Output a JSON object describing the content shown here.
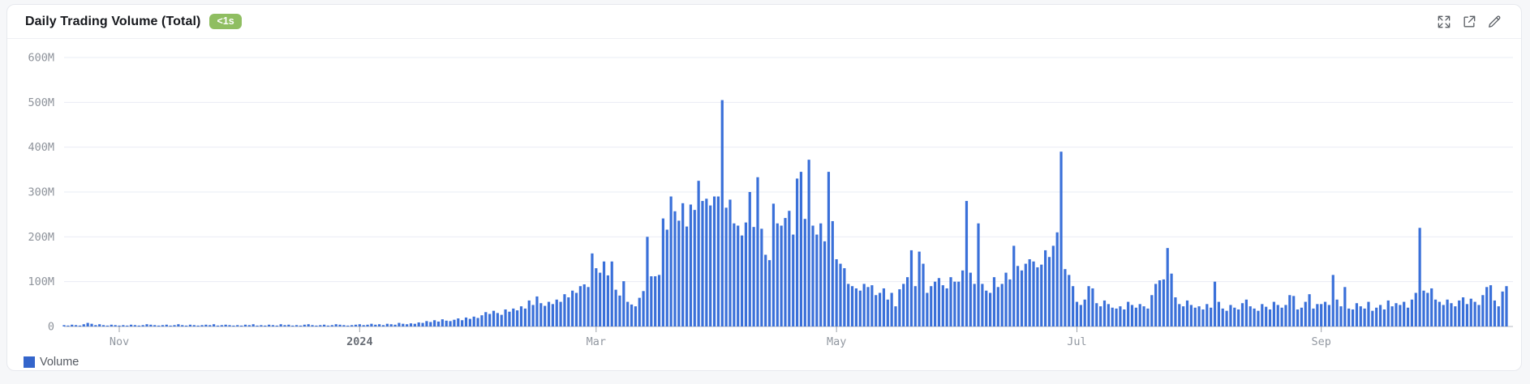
{
  "header": {
    "title": "Daily Trading Volume (Total)",
    "badge": "<1s",
    "badge_color": "#8fbe61",
    "icons": [
      {
        "name": "expand-icon"
      },
      {
        "name": "open-in-new-icon"
      },
      {
        "name": "edit-pencil-icon"
      }
    ]
  },
  "legend": {
    "label": "Volume",
    "color": "#3465cb"
  },
  "chart_data": {
    "type": "bar",
    "title": "Daily Trading Volume (Total)",
    "series_name": "Volume",
    "unit": "millions",
    "frequency": "daily",
    "start_date": "2023-10-18",
    "end_date": "2024-10-18",
    "ylim": [
      0,
      600000000
    ],
    "y_ticks": [
      {
        "value": 0,
        "label": "0"
      },
      {
        "value": 100,
        "label": "100M"
      },
      {
        "value": 200,
        "label": "200M"
      },
      {
        "value": 300,
        "label": "300M"
      },
      {
        "value": 400,
        "label": "400M"
      },
      {
        "value": 500,
        "label": "500M"
      },
      {
        "value": 600,
        "label": "600M"
      }
    ],
    "x_ticks": [
      {
        "label": "Nov",
        "day_index": 14,
        "bold": false
      },
      {
        "label": "2024",
        "day_index": 75,
        "bold": true
      },
      {
        "label": "Mar",
        "day_index": 135,
        "bold": false
      },
      {
        "label": "May",
        "day_index": 196,
        "bold": false
      },
      {
        "label": "Jul",
        "day_index": 257,
        "bold": false
      },
      {
        "label": "Sep",
        "day_index": 319,
        "bold": false
      }
    ],
    "bar_color": "#3a70d9",
    "grid": true,
    "legend_position": "bottom-left",
    "values_in_millions": [
      3,
      2,
      4,
      3,
      2,
      5,
      8,
      6,
      3,
      5,
      3,
      2,
      4,
      3,
      2,
      3,
      2,
      4,
      3,
      2,
      3,
      5,
      4,
      3,
      2,
      3,
      4,
      2,
      3,
      5,
      3,
      2,
      4,
      3,
      2,
      3,
      4,
      3,
      5,
      2,
      3,
      4,
      3,
      2,
      3,
      2,
      4,
      3,
      5,
      2,
      3,
      2,
      4,
      3,
      2,
      5,
      3,
      4,
      2,
      3,
      2,
      4,
      5,
      3,
      2,
      3,
      4,
      2,
      3,
      5,
      4,
      3,
      2,
      3,
      4,
      5,
      3,
      4,
      6,
      4,
      5,
      3,
      6,
      5,
      4,
      8,
      6,
      5,
      7,
      6,
      9,
      8,
      12,
      10,
      14,
      11,
      16,
      13,
      12,
      15,
      18,
      14,
      20,
      17,
      22,
      19,
      25,
      32,
      28,
      35,
      30,
      26,
      38,
      33,
      40,
      36,
      45,
      40,
      58,
      48,
      67,
      52,
      46,
      55,
      50,
      60,
      55,
      72,
      65,
      80,
      75,
      90,
      94,
      88,
      163,
      130,
      120,
      145,
      114,
      145,
      82,
      69,
      101,
      55,
      49,
      45,
      64,
      79,
      200,
      112,
      112,
      115,
      241,
      216,
      290,
      257,
      236,
      275,
      223,
      272,
      260,
      325,
      280,
      285,
      270,
      290,
      290,
      505,
      265,
      283,
      230,
      225,
      203,
      232,
      300,
      222,
      333,
      218,
      160,
      148,
      274,
      230,
      225,
      242,
      258,
      205,
      330,
      345,
      240,
      372,
      225,
      205,
      230,
      190,
      345,
      235,
      150,
      140,
      130,
      95,
      90,
      85,
      80,
      95,
      88,
      92,
      70,
      75,
      85,
      60,
      75,
      45,
      83,
      95,
      110,
      170,
      90,
      167,
      140,
      75,
      90,
      100,
      108,
      92,
      85,
      110,
      100,
      100,
      125,
      280,
      120,
      95,
      230,
      95,
      80,
      75,
      110,
      88,
      95,
      120,
      105,
      180,
      135,
      125,
      140,
      150,
      145,
      132,
      138,
      170,
      155,
      180,
      210,
      390,
      128,
      115,
      90,
      55,
      48,
      60,
      90,
      85,
      52,
      45,
      58,
      50,
      42,
      40,
      45,
      38,
      55,
      48,
      42,
      50,
      45,
      40,
      70,
      95,
      103,
      105,
      175,
      118,
      65,
      50,
      45,
      58,
      48,
      42,
      45,
      38,
      50,
      42,
      100,
      55,
      40,
      35,
      48,
      42,
      38,
      52,
      60,
      45,
      40,
      35,
      50,
      44,
      38,
      55,
      48,
      42,
      48,
      70,
      68,
      38,
      42,
      55,
      72,
      40,
      50,
      50,
      55,
      48,
      115,
      60,
      45,
      88,
      40,
      38,
      52,
      45,
      40,
      55,
      35,
      42,
      48,
      38,
      58,
      45,
      52,
      48,
      55,
      42,
      60,
      75,
      220,
      80,
      75,
      85,
      60,
      55,
      48,
      60,
      52,
      45,
      58,
      65,
      50,
      62,
      55,
      48,
      70,
      88,
      92,
      58,
      45,
      78,
      90
    ]
  }
}
